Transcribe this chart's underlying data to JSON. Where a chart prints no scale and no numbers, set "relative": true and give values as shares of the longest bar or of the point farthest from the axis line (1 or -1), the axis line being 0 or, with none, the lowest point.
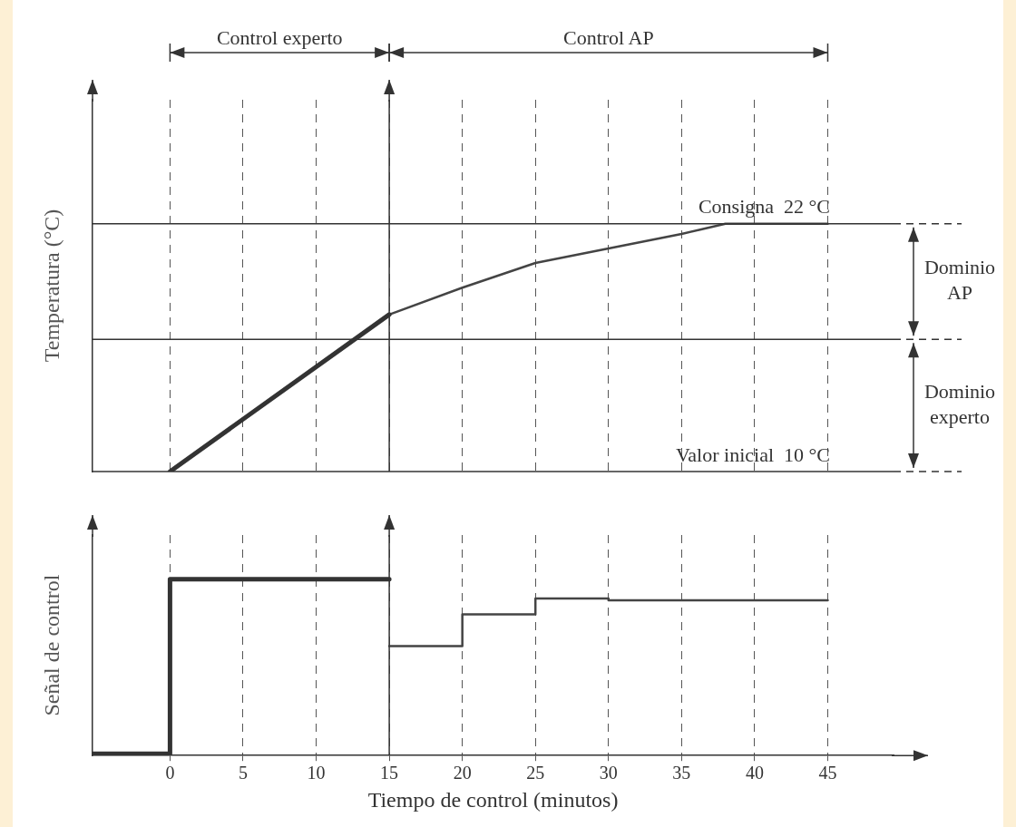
{
  "chart_data": [
    {
      "type": "line",
      "ylabel": "Temperatura (°C)",
      "xlim": [
        -5.3,
        49.5
      ],
      "xticks": [
        0,
        5,
        10,
        15,
        20,
        25,
        30,
        35,
        40,
        45
      ],
      "ylim": [
        10,
        28
      ],
      "tick_labels": false,
      "grid": "x",
      "series": [
        {
          "color": "#333333",
          "x": [
            0,
            15
          ],
          "values": [
            10,
            17.6
          ]
        },
        {
          "color": "#444444",
          "x": [
            15,
            20,
            25,
            30,
            35,
            38,
            45
          ],
          "values": [
            17.6,
            18.9,
            20.1,
            20.8,
            21.5,
            22,
            22
          ]
        }
      ],
      "ref_lines": [
        {
          "axis": "y",
          "value": 22,
          "label": "Consigna  22 °C"
        },
        {
          "axis": "y",
          "value": 16.4
        },
        {
          "axis": "y",
          "value": 10,
          "label": "Valor inicial  10 °C"
        },
        {
          "axis": "x",
          "value": 15
        }
      ],
      "annotations": [
        "Control experto",
        "Control AP",
        "Dominio AP",
        "Dominio experto"
      ]
    },
    {
      "type": "step",
      "ylabel": "Señal de control",
      "xlabel": "Tiempo de control (minutos)",
      "xlim": [
        -5.3,
        49.5
      ],
      "xticks": [
        0,
        5,
        10,
        15,
        20,
        25,
        30,
        35,
        40,
        45
      ],
      "relative": true,
      "tick_labels": "x",
      "grid": "x",
      "series": [
        {
          "color": "#333333",
          "x": [
            -5.3,
            0,
            15
          ],
          "values": [
            0.01,
            1,
            1
          ]
        },
        {
          "color": "#444444",
          "x": [
            15,
            20,
            25,
            30,
            45
          ],
          "values": [
            0.62,
            0.8,
            0.89,
            0.88,
            0.88
          ]
        }
      ],
      "ref_lines": [
        {
          "axis": "x",
          "value": 15
        }
      ]
    }
  ]
}
